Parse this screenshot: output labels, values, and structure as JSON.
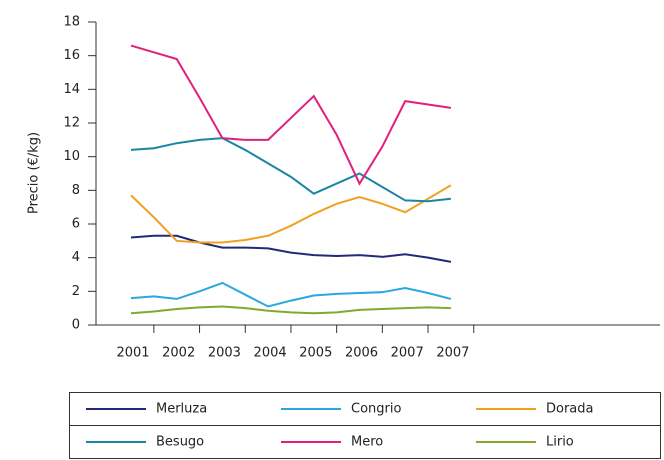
{
  "chart_data": {
    "type": "line",
    "y_label": "Precio (€/kg)",
    "categories": [
      "2001",
      null,
      "2002",
      null,
      "2003",
      null,
      "2004",
      null,
      "2005",
      null,
      "2006",
      null,
      "2007",
      null,
      "2007"
    ],
    "ylim": [
      0,
      18
    ],
    "yticks": [
      0,
      2,
      4,
      6,
      8,
      10,
      12,
      14,
      16,
      18
    ],
    "series": [
      {
        "name": "Merluza",
        "color": "#23297a",
        "values": [
          5.2,
          5.3,
          5.3,
          4.9,
          4.6,
          4.6,
          4.55,
          4.3,
          4.15,
          4.1,
          4.15,
          4.05,
          4.2,
          4.0,
          3.75
        ]
      },
      {
        "name": "Congrio",
        "color": "#29a8df",
        "values": [
          1.6,
          1.7,
          1.55,
          2.0,
          2.5,
          1.8,
          1.1,
          1.45,
          1.75,
          1.85,
          1.9,
          1.95,
          2.2,
          1.9,
          1.55
        ]
      },
      {
        "name": "Dorada",
        "color": "#f2a024",
        "values": [
          7.7,
          6.4,
          5.0,
          4.9,
          4.9,
          5.05,
          5.3,
          5.9,
          6.6,
          7.2,
          7.6,
          7.2,
          6.7,
          7.5,
          8.3
        ]
      },
      {
        "name": "Besugo",
        "color": "#1b86a2",
        "values": [
          10.4,
          10.5,
          10.8,
          11.0,
          11.1,
          10.4,
          9.6,
          8.8,
          7.8,
          8.4,
          9.0,
          8.2,
          7.4,
          7.35,
          7.5
        ]
      },
      {
        "name": "Mero",
        "color": "#e0207c",
        "values": [
          16.6,
          16.2,
          15.8,
          13.5,
          11.1,
          11.0,
          11.0,
          12.3,
          13.6,
          11.3,
          8.4,
          10.6,
          13.3,
          13.1,
          12.9
        ]
      },
      {
        "name": "Lirio",
        "color": "#82a832",
        "values": [
          0.7,
          0.8,
          0.95,
          1.05,
          1.1,
          1.0,
          0.85,
          0.75,
          0.7,
          0.75,
          0.9,
          0.95,
          1.0,
          1.05,
          1.0
        ]
      }
    ]
  }
}
